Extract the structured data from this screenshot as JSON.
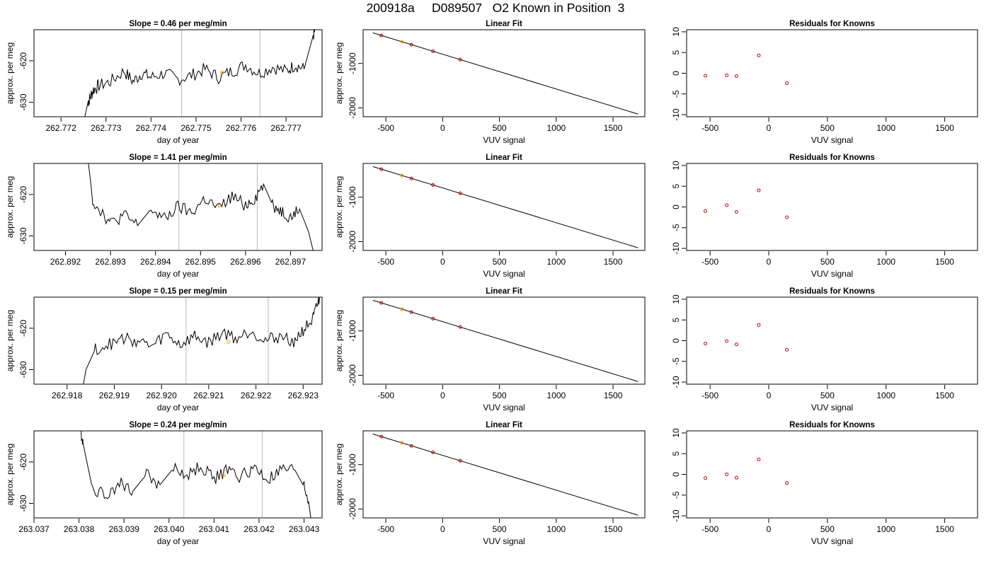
{
  "title": "200918a     D089507   O2 Known in Position  3",
  "chart_data": [
    {
      "type": "line",
      "row": 1,
      "panel": "timeseries",
      "title": "Slope =  0.46  per meg/min",
      "xlabel": "day of year",
      "ylabel": "approx. per meg",
      "xlim": [
        262.7714,
        262.7778
      ],
      "ylim": [
        -633.5,
        -612.5
      ],
      "xticks": [
        262.772,
        262.773,
        262.774,
        262.775,
        262.776,
        262.777
      ],
      "xtick_labels": [
        "262.772",
        "262.773",
        "262.774",
        "262.775",
        "262.776",
        "262.777"
      ],
      "yticks": [
        -620,
        -630
      ],
      "ytick_labels": [
        "-620",
        "-630"
      ],
      "vlines": [
        262.77468,
        262.77642
      ],
      "series": [
        {
          "x": [
            262.77252,
            262.7726,
            262.77264,
            262.77272,
            262.77284,
            262.7731,
            262.7734,
            262.7736,
            262.7738,
            262.774,
            262.7743,
            262.7746,
            262.7749,
            262.7752,
            262.7755,
            262.7758,
            262.7761,
            262.7764,
            262.7767,
            262.777,
            262.7772,
            262.7774,
            262.7775,
            262.7776,
            262.77765
          ],
          "y": [
            -634.0,
            -630.0,
            -629.0,
            -627.0,
            -626.0,
            -625.0,
            -622.5,
            -625.0,
            -623.0,
            -624.0,
            -623.0,
            -624.5,
            -623.5,
            -622.0,
            -624.0,
            -622.5,
            -621.0,
            -623.0,
            -621.5,
            -622.5,
            -621.0,
            -622.0,
            -618.0,
            -614.0,
            -612.5
          ]
        }
      ],
      "points": [
        {
          "x": 262.77558,
          "y": -622.8,
          "color": "#ff9900"
        }
      ]
    },
    {
      "type": "scatter",
      "row": 1,
      "panel": "linear-fit",
      "title": "Linear Fit",
      "xlabel": "VUV signal",
      "ylabel": "approx. per meg",
      "xlim": [
        -700,
        1780
      ],
      "ylim": [
        -2200,
        -240
      ],
      "xticks": [
        -500,
        0,
        500,
        1000,
        1500
      ],
      "xtick_labels": [
        "-500",
        "0",
        "500",
        "1000",
        "1500"
      ],
      "yticks": [
        -1000,
        -2000
      ],
      "ytick_labels": [
        "-1000",
        "-2000"
      ],
      "fit_line": {
        "x": [
          -615,
          1720
        ],
        "y": [
          -310,
          -2140
        ]
      },
      "points": [
        {
          "x": -540,
          "y": -370,
          "color": "#cc0000"
        },
        {
          "x": -358,
          "y": -512,
          "color": "#ff9900"
        },
        {
          "x": -275,
          "y": -578,
          "color": "#cc0000"
        },
        {
          "x": -85,
          "y": -725,
          "color": "#cc0000"
        },
        {
          "x": 155,
          "y": -912,
          "color": "#cc0000"
        }
      ]
    },
    {
      "type": "scatter",
      "row": 1,
      "panel": "residuals",
      "title": "Residuals for Knowns",
      "xlabel": "VUV signal",
      "ylabel": "",
      "xlim": [
        -700,
        1780
      ],
      "ylim": [
        -10.5,
        10.5
      ],
      "xticks": [
        -500,
        0,
        500,
        1000,
        1500
      ],
      "xtick_labels": [
        "-500",
        "0",
        "500",
        "1000",
        "1500"
      ],
      "yticks": [
        10,
        5,
        0,
        -5,
        -10
      ],
      "ytick_labels": [
        "10",
        "5",
        "0",
        "-5",
        "-10"
      ],
      "points": [
        {
          "x": -540,
          "y": -0.6,
          "color": "#cc0000"
        },
        {
          "x": -358,
          "y": -0.5,
          "color": "#cc0000"
        },
        {
          "x": -275,
          "y": -0.7,
          "color": "#cc0000"
        },
        {
          "x": -85,
          "y": 4.3,
          "color": "#cc0000"
        },
        {
          "x": 155,
          "y": -2.4,
          "color": "#cc0000"
        }
      ]
    },
    {
      "type": "line",
      "row": 2,
      "panel": "timeseries",
      "title": "Slope =  1.41  per meg/min",
      "xlabel": "day of year",
      "ylabel": "approx. per meg",
      "xlim": [
        262.8913,
        262.8977
      ],
      "ylim": [
        -633.5,
        -612.5
      ],
      "xticks": [
        262.892,
        262.893,
        262.894,
        262.895,
        262.896,
        262.897
      ],
      "xtick_labels": [
        "262.892",
        "262.893",
        "262.894",
        "262.895",
        "262.896",
        "262.897"
      ],
      "yticks": [
        -620,
        -630
      ],
      "ytick_labels": [
        "-620",
        "-630"
      ],
      "vlines": [
        262.89452,
        262.89626
      ],
      "series": [
        {
          "x": [
            262.89251,
            262.89256,
            262.8926,
            262.8928,
            262.893,
            262.8933,
            262.8936,
            262.8939,
            262.8942,
            262.8945,
            262.8948,
            262.8951,
            262.8954,
            262.8957,
            262.896,
            262.8962,
            262.8964,
            262.8966,
            262.8968,
            262.897,
            262.8972,
            262.8974,
            262.8975
          ],
          "y": [
            -612.5,
            -617.0,
            -621.5,
            -624.0,
            -627.0,
            -625.0,
            -627.5,
            -623.5,
            -626.0,
            -623.0,
            -624.5,
            -621.0,
            -623.5,
            -620.5,
            -622.5,
            -621.0,
            -617.5,
            -622.5,
            -624.0,
            -625.5,
            -623.5,
            -629.0,
            -633.5
          ]
        }
      ],
      "points": [
        {
          "x": 262.89542,
          "y": -622.7,
          "color": "#ff9900"
        }
      ]
    },
    {
      "type": "scatter",
      "row": 2,
      "panel": "linear-fit",
      "title": "Linear Fit",
      "xlabel": "VUV signal",
      "ylabel": "approx. per meg",
      "xlim": [
        -700,
        1780
      ],
      "ylim": [
        -2200,
        -240
      ],
      "xticks": [
        -500,
        0,
        500,
        1000,
        1500
      ],
      "xtick_labels": [
        "-500",
        "0",
        "500",
        "1000",
        "1500"
      ],
      "yticks": [
        -1000,
        -2000
      ],
      "ytick_labels": [
        "-1000",
        "-2000"
      ],
      "fit_line": {
        "x": [
          -615,
          1720
        ],
        "y": [
          -310,
          -2140
        ]
      },
      "points": [
        {
          "x": -540,
          "y": -370,
          "color": "#cc0000"
        },
        {
          "x": -358,
          "y": -512,
          "color": "#ff9900"
        },
        {
          "x": -275,
          "y": -578,
          "color": "#cc0000"
        },
        {
          "x": -85,
          "y": -725,
          "color": "#cc0000"
        },
        {
          "x": 155,
          "y": -912,
          "color": "#cc0000"
        }
      ]
    },
    {
      "type": "scatter",
      "row": 2,
      "panel": "residuals",
      "title": "Residuals for Knowns",
      "xlabel": "VUV signal",
      "ylabel": "",
      "xlim": [
        -700,
        1780
      ],
      "ylim": [
        -10.5,
        10.5
      ],
      "xticks": [
        -500,
        0,
        500,
        1000,
        1500
      ],
      "xtick_labels": [
        "-500",
        "0",
        "500",
        "1000",
        "1500"
      ],
      "yticks": [
        10,
        5,
        0,
        -5,
        -10
      ],
      "ytick_labels": [
        "10",
        "5",
        "0",
        "-5",
        "-10"
      ],
      "points": [
        {
          "x": -540,
          "y": -1.0,
          "color": "#cc0000"
        },
        {
          "x": -358,
          "y": 0.4,
          "color": "#cc0000"
        },
        {
          "x": -275,
          "y": -1.2,
          "color": "#cc0000"
        },
        {
          "x": -85,
          "y": 4.0,
          "color": "#cc0000"
        },
        {
          "x": 155,
          "y": -2.5,
          "color": "#cc0000"
        }
      ]
    },
    {
      "type": "line",
      "row": 3,
      "panel": "timeseries",
      "title": "Slope =  0.15  per meg/min",
      "xlabel": "day of year",
      "ylabel": "approx. per meg",
      "xlim": [
        262.9173,
        262.9234
      ],
      "ylim": [
        -633.5,
        -612.5
      ],
      "xticks": [
        262.918,
        262.919,
        262.92,
        262.921,
        262.922,
        262.923
      ],
      "xtick_labels": [
        "262.918",
        "262.919",
        "262.920",
        "262.921",
        "262.922",
        "262.923"
      ],
      "yticks": [
        -620,
        -630
      ],
      "ytick_labels": [
        "-620",
        "-630"
      ],
      "vlines": [
        262.92052,
        262.92226
      ],
      "series": [
        {
          "x": [
            262.91834,
            262.9184,
            262.9186,
            262.9189,
            262.9192,
            262.9195,
            262.9198,
            262.9201,
            262.9204,
            262.9207,
            262.921,
            262.9213,
            262.9216,
            262.9219,
            262.9222,
            262.9225,
            262.9228,
            262.923,
            262.9232,
            262.9233,
            262.92335
          ],
          "y": [
            -634.0,
            -630.0,
            -625.0,
            -624.0,
            -622.5,
            -623.0,
            -624.5,
            -621.5,
            -624.0,
            -622.0,
            -623.5,
            -621.0,
            -622.5,
            -620.5,
            -623.0,
            -622.0,
            -623.0,
            -620.5,
            -618.0,
            -614.5,
            -612.5
          ]
        }
      ],
      "points": [
        {
          "x": 262.92142,
          "y": -623.3,
          "color": "#ff9900"
        }
      ]
    },
    {
      "type": "scatter",
      "row": 3,
      "panel": "linear-fit",
      "title": "Linear Fit",
      "xlabel": "VUV signal",
      "ylabel": "approx. per meg",
      "xlim": [
        -700,
        1780
      ],
      "ylim": [
        -2200,
        -240
      ],
      "xticks": [
        -500,
        0,
        500,
        1000,
        1500
      ],
      "xtick_labels": [
        "-500",
        "0",
        "500",
        "1000",
        "1500"
      ],
      "yticks": [
        -1000,
        -2000
      ],
      "ytick_labels": [
        "-1000",
        "-2000"
      ],
      "fit_line": {
        "x": [
          -615,
          1720
        ],
        "y": [
          -310,
          -2140
        ]
      },
      "points": [
        {
          "x": -540,
          "y": -370,
          "color": "#cc0000"
        },
        {
          "x": -358,
          "y": -512,
          "color": "#ff9900"
        },
        {
          "x": -275,
          "y": -578,
          "color": "#cc0000"
        },
        {
          "x": -85,
          "y": -725,
          "color": "#cc0000"
        },
        {
          "x": 155,
          "y": -912,
          "color": "#cc0000"
        }
      ]
    },
    {
      "type": "scatter",
      "row": 3,
      "panel": "residuals",
      "title": "Residuals for Knowns",
      "xlabel": "VUV signal",
      "ylabel": "",
      "xlim": [
        -700,
        1780
      ],
      "ylim": [
        -10.5,
        10.5
      ],
      "xticks": [
        -500,
        0,
        500,
        1000,
        1500
      ],
      "xtick_labels": [
        "-500",
        "0",
        "500",
        "1000",
        "1500"
      ],
      "yticks": [
        10,
        5,
        0,
        -5,
        -10
      ],
      "ytick_labels": [
        "10",
        "5",
        "0",
        "-5",
        "-10"
      ],
      "points": [
        {
          "x": -540,
          "y": -0.7,
          "color": "#cc0000"
        },
        {
          "x": -358,
          "y": -0.1,
          "color": "#cc0000"
        },
        {
          "x": -275,
          "y": -0.9,
          "color": "#cc0000"
        },
        {
          "x": -85,
          "y": 3.8,
          "color": "#cc0000"
        },
        {
          "x": 155,
          "y": -2.2,
          "color": "#cc0000"
        }
      ]
    },
    {
      "type": "line",
      "row": 4,
      "panel": "timeseries",
      "title": "Slope =  0.24  per meg/min",
      "xlabel": "day of year",
      "ylabel": "approx. per meg",
      "xlim": [
        263.037,
        263.0434
      ],
      "ylim": [
        -633.5,
        -612.5
      ],
      "xticks": [
        263.037,
        263.038,
        263.039,
        263.04,
        263.041,
        263.042,
        263.043
      ],
      "xtick_labels": [
        "263.037",
        "263.038",
        "263.039",
        "263.040",
        "263.041",
        "263.042",
        "263.043"
      ],
      "yticks": [
        -620,
        -630
      ],
      "ytick_labels": [
        "-620",
        "-630"
      ],
      "vlines": [
        263.04033,
        263.04207
      ],
      "series": [
        {
          "x": [
            263.03804,
            263.0381,
            263.0383,
            263.0386,
            263.0389,
            263.0392,
            263.0395,
            263.0398,
            263.0401,
            263.0404,
            263.0407,
            263.041,
            263.0413,
            263.0416,
            263.0419,
            263.0422,
            263.0425,
            263.0428,
            263.043,
            263.0431,
            263.04315
          ],
          "y": [
            -612.5,
            -616.0,
            -626.5,
            -628.0,
            -625.0,
            -627.0,
            -623.0,
            -625.5,
            -621.5,
            -623.5,
            -621.0,
            -624.0,
            -622.0,
            -623.5,
            -621.5,
            -624.5,
            -622.0,
            -622.0,
            -626.0,
            -629.5,
            -633.5
          ]
        }
      ],
      "points": [
        {
          "x": 263.04122,
          "y": -623.2,
          "color": "#ff9900"
        }
      ]
    },
    {
      "type": "scatter",
      "row": 4,
      "panel": "linear-fit",
      "title": "Linear Fit",
      "xlabel": "VUV signal",
      "ylabel": "approx. per meg",
      "xlim": [
        -700,
        1780
      ],
      "ylim": [
        -2200,
        -240
      ],
      "xticks": [
        -500,
        0,
        500,
        1000,
        1500
      ],
      "xtick_labels": [
        "-500",
        "0",
        "500",
        "1000",
        "1500"
      ],
      "yticks": [
        -1000,
        -2000
      ],
      "ytick_labels": [
        "-1000",
        "-2000"
      ],
      "fit_line": {
        "x": [
          -615,
          1720
        ],
        "y": [
          -310,
          -2140
        ]
      },
      "points": [
        {
          "x": -540,
          "y": -370,
          "color": "#cc0000"
        },
        {
          "x": -358,
          "y": -512,
          "color": "#ff9900"
        },
        {
          "x": -275,
          "y": -578,
          "color": "#cc0000"
        },
        {
          "x": -85,
          "y": -725,
          "color": "#cc0000"
        },
        {
          "x": 155,
          "y": -912,
          "color": "#cc0000"
        }
      ]
    },
    {
      "type": "scatter",
      "row": 4,
      "panel": "residuals",
      "title": "Residuals for Knowns",
      "xlabel": "VUV signal",
      "ylabel": "",
      "xlim": [
        -700,
        1780
      ],
      "ylim": [
        -10.5,
        10.5
      ],
      "xticks": [
        -500,
        0,
        500,
        1000,
        1500
      ],
      "xtick_labels": [
        "-500",
        "0",
        "500",
        "1000",
        "1500"
      ],
      "yticks": [
        10,
        5,
        0,
        -5,
        -10
      ],
      "ytick_labels": [
        "10",
        "5",
        "0",
        "-5",
        "-10"
      ],
      "points": [
        {
          "x": -540,
          "y": -0.9,
          "color": "#cc0000"
        },
        {
          "x": -358,
          "y": 0.0,
          "color": "#cc0000"
        },
        {
          "x": -275,
          "y": -0.8,
          "color": "#cc0000"
        },
        {
          "x": -85,
          "y": 3.6,
          "color": "#cc0000"
        },
        {
          "x": 155,
          "y": -2.1,
          "color": "#cc0000"
        }
      ]
    }
  ]
}
